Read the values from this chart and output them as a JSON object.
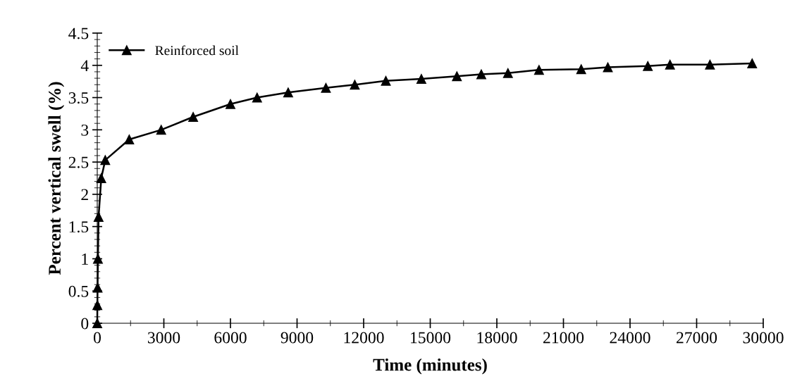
{
  "chart_data": {
    "type": "line",
    "xlabel": "Time (minutes)",
    "ylabel": "Percent vertical swell (%)",
    "xlim": [
      0,
      30000
    ],
    "xticks": [
      0,
      3000,
      6000,
      9000,
      12000,
      15000,
      18000,
      21000,
      24000,
      27000,
      30000
    ],
    "ylim": [
      0,
      4.5
    ],
    "yticks": [
      0,
      0.5,
      1,
      1.5,
      2,
      2.5,
      3,
      3.5,
      4,
      4.5
    ],
    "legend": "top left",
    "marker": "triangle",
    "line_style": "solid",
    "grid": false,
    "series": [
      {
        "name": "Reinforced soil",
        "color": "#000000",
        "x": [
          0,
          5,
          15,
          30,
          60,
          180,
          360,
          1440,
          2880,
          4320,
          6000,
          7200,
          8600,
          10300,
          11600,
          13000,
          14600,
          16200,
          17300,
          18500,
          19900,
          21800,
          23000,
          24800,
          25800,
          27600,
          29500
        ],
        "values": [
          0,
          0.28,
          0.55,
          1.0,
          1.65,
          2.25,
          2.53,
          2.85,
          3.0,
          3.2,
          3.4,
          3.5,
          3.58,
          3.65,
          3.7,
          3.76,
          3.79,
          3.83,
          3.86,
          3.88,
          3.93,
          3.94,
          3.97,
          3.99,
          4.01,
          4.01,
          4.03
        ]
      }
    ]
  }
}
